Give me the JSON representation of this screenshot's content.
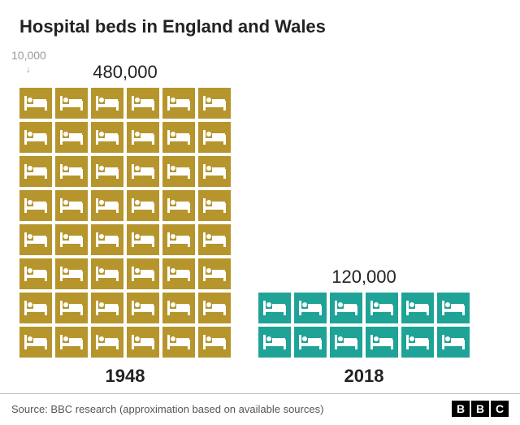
{
  "title": "Hospital beds in England and Wales",
  "unit_label": "10,000",
  "columns": 6,
  "tile": {
    "width": 40,
    "height": 38,
    "gap": 4
  },
  "series": [
    {
      "year": "1948",
      "total_label": "480,000",
      "tile_count": 48,
      "tile_color": "#b6952c",
      "icon_color": "#ffffff",
      "show_unit_marker": true
    },
    {
      "year": "2018",
      "total_label": "120,000",
      "tile_count": 12,
      "tile_color": "#1fa397",
      "icon_color": "#ffffff",
      "show_unit_marker": false
    }
  ],
  "footer": {
    "source": "Source: BBC research (approximation based on available sources)"
  },
  "bbc": [
    "B",
    "B",
    "C"
  ],
  "colors": {
    "background": "#ffffff",
    "title": "#222222",
    "muted": "#9a9a9a",
    "divider": "#bdbdbd"
  },
  "fontsize": {
    "title": 22,
    "total": 22,
    "year": 22,
    "unit": 14,
    "source": 13
  }
}
